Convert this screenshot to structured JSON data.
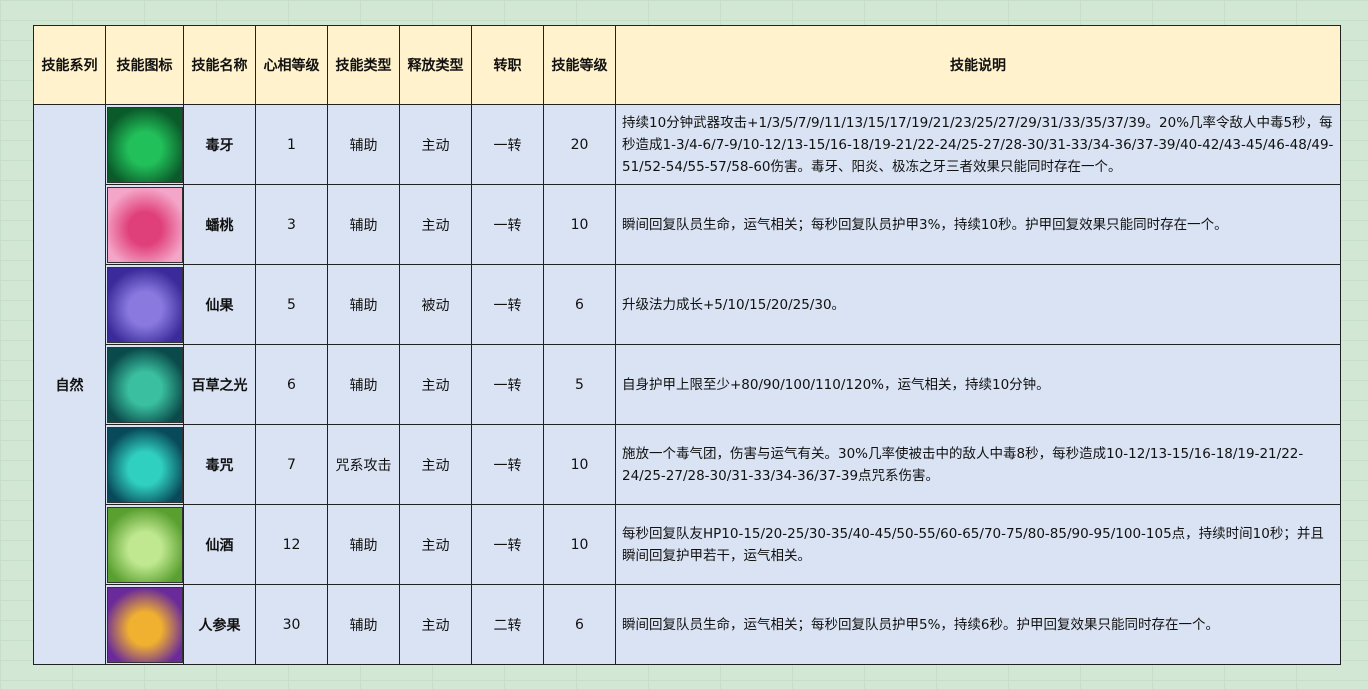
{
  "headers": [
    "技能系列",
    "技能图标",
    "技能名称",
    "心相等级",
    "技能类型",
    "释放类型",
    "转职",
    "技能等级",
    "技能说明"
  ],
  "series": "自然",
  "rows": [
    {
      "icon": "poison-fang-icon",
      "colors": [
        "#0a5a2a",
        "#22c05a"
      ],
      "name": "毒牙",
      "level": "1",
      "type": "辅助",
      "release": "主动",
      "job": "一转",
      "skill_level": "20",
      "desc": "持续10分钟武器攻击+1/3/5/7/9/11/13/15/17/19/21/23/25/27/29/31/33/35/37/39。20%几率令敌人中毒5秒，每秒造成1-3/4-6/7-9/10-12/13-15/16-18/19-21/22-24/25-27/28-30/31-33/34-36/37-39/40-42/43-45/46-48/49-51/52-54/55-57/58-60伤害。毒牙、阳炎、极冻之牙三者效果只能同时存在一个。"
    },
    {
      "icon": "peach-icon",
      "colors": [
        "#f4a6c8",
        "#e0407a"
      ],
      "name": "蟠桃",
      "level": "3",
      "type": "辅助",
      "release": "主动",
      "job": "一转",
      "skill_level": "10",
      "desc": "瞬间回复队员生命，运气相关；每秒回复队员护甲3%，持续10秒。护甲回复效果只能同时存在一个。"
    },
    {
      "icon": "fairy-fruit-icon",
      "colors": [
        "#3a2a9a",
        "#8a7ae0"
      ],
      "name": "仙果",
      "level": "5",
      "type": "辅助",
      "release": "被动",
      "job": "一转",
      "skill_level": "6",
      "desc": "升级法力成长+5/10/15/20/25/30。"
    },
    {
      "icon": "herb-light-icon",
      "colors": [
        "#0a4a4a",
        "#3ac0a0"
      ],
      "name": "百草之光",
      "level": "6",
      "type": "辅助",
      "release": "主动",
      "job": "一转",
      "skill_level": "5",
      "desc": "自身护甲上限至少+80/90/100/110/120%，运气相关，持续10分钟。"
    },
    {
      "icon": "poison-curse-icon",
      "colors": [
        "#084a5a",
        "#30d0c0"
      ],
      "name": "毒咒",
      "level": "7",
      "type": "咒系攻击",
      "release": "主动",
      "job": "一转",
      "skill_level": "10",
      "desc": "施放一个毒气团，伤害与运气有关。30%几率使被击中的敌人中毒8秒，每秒造成10-12/13-15/16-18/19-21/22-24/25-27/28-30/31-33/34-36/37-39点咒系伤害。"
    },
    {
      "icon": "fairy-wine-icon",
      "colors": [
        "#5aa030",
        "#c0e890"
      ],
      "name": "仙酒",
      "level": "12",
      "type": "辅助",
      "release": "主动",
      "job": "一转",
      "skill_level": "10",
      "desc": "每秒回复队友HP10-15/20-25/30-35/40-45/50-55/60-65/70-75/80-85/90-95/100-105点，持续时间10秒；并且瞬间回复护甲若干，运气相关。"
    },
    {
      "icon": "ginseng-fruit-icon",
      "colors": [
        "#6a2a9a",
        "#f0b030"
      ],
      "name": "人参果",
      "level": "30",
      "type": "辅助",
      "release": "主动",
      "job": "二转",
      "skill_level": "6",
      "desc": "瞬间回复队员生命，运气相关；每秒回复队员护甲5%，持续6秒。护甲回复效果只能同时存在一个。"
    }
  ]
}
